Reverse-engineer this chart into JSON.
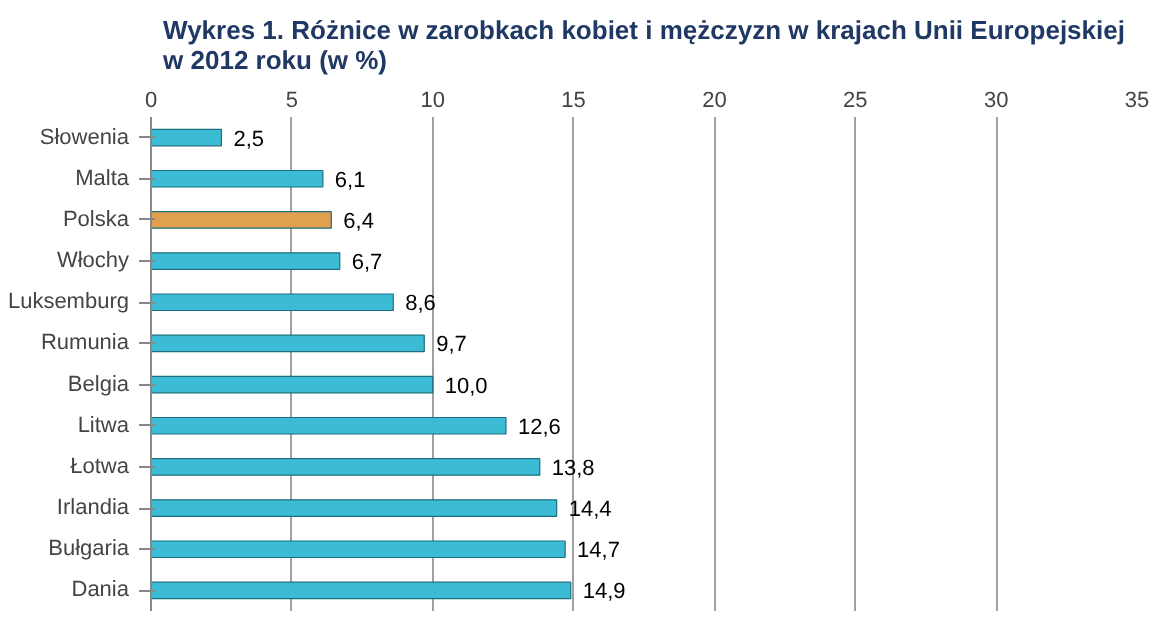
{
  "chart_data": {
    "type": "bar",
    "orientation": "horizontal",
    "title": "Wykres 1. Różnice w zarobkach kobiet i mężczyzn w krajach Unii Europejskiej\nw 2012 roku (w %)",
    "categories": [
      "Słowenia",
      "Malta",
      "Polska",
      "Włochy",
      "Luksemburg",
      "Rumunia",
      "Belgia",
      "Litwa",
      "Łotwa",
      "Irlandia",
      "Bułgaria",
      "Dania"
    ],
    "values": [
      2.5,
      6.1,
      6.4,
      6.7,
      8.6,
      9.7,
      10.0,
      12.6,
      13.8,
      14.4,
      14.7,
      14.9
    ],
    "colors": [
      "#3cbcd4",
      "#3cbcd4",
      "#e0a050",
      "#3cbcd4",
      "#3cbcd4",
      "#3cbcd4",
      "#3cbcd4",
      "#3cbcd4",
      "#3cbcd4",
      "#3cbcd4",
      "#3cbcd4",
      "#3cbcd4"
    ],
    "value_labels": [
      "2,5",
      "6,1",
      "6,4",
      "6,7",
      "8,6",
      "9,7",
      "10,0",
      "12,6",
      "13,8",
      "14,4",
      "14,7",
      "14,9"
    ],
    "xlim": [
      0,
      35
    ],
    "xticks": [
      0,
      5,
      10,
      15,
      20,
      25,
      30,
      35
    ],
    "grid": "x"
  }
}
